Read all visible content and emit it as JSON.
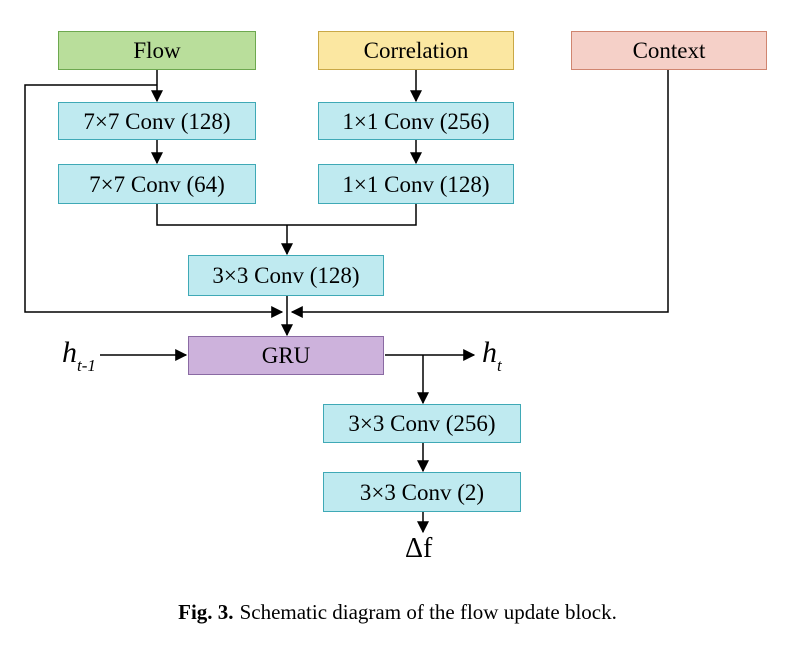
{
  "inputs": {
    "flow": "Flow",
    "correlation": "Correlation",
    "context": "Context"
  },
  "flow_branch": {
    "conv1": "7×7 Conv (128)",
    "conv2": "7×7 Conv (64)"
  },
  "corr_branch": {
    "conv1": "1×1 Conv (256)",
    "conv2": "1×1 Conv (128)"
  },
  "merge_conv": "3×3 Conv (128)",
  "gru": "GRU",
  "hidden_in": {
    "base": "h",
    "sub": "t-1"
  },
  "hidden_out": {
    "base": "h",
    "sub": "t"
  },
  "head": {
    "conv1": "3×3 Conv (256)",
    "conv2": "3×3 Conv (2)"
  },
  "output": "Δf",
  "caption": {
    "label": "Fig. 3.",
    "text": "Schematic diagram of the flow update block."
  },
  "colors": {
    "flow": "#b9de9b",
    "correlation": "#fbe7a1",
    "context": "#f5d0c8",
    "conv": "#bfeaf0",
    "gru": "#cdb2dc"
  }
}
